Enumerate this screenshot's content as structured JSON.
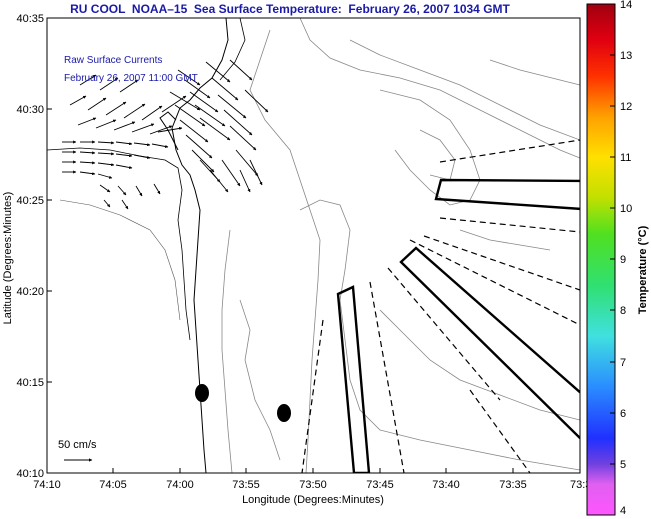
{
  "title": "RU COOL  NOAA–15  Sea Surface Temperature:  February 26, 2007 1034 GMT",
  "legend": {
    "line1": "Raw Surface Currents",
    "line2": "February 26, 2007 11:00 GMT",
    "scale_label": "50 cm/s"
  },
  "axes": {
    "xlabel": "Longitude (Degrees:Minutes)",
    "ylabel": "Latitude (Degrees:Minutes)",
    "x_ticks": [
      "74:10",
      "74:05",
      "74:00",
      "73:55",
      "73:50",
      "73:45",
      "73:40",
      "73:35",
      "73:3"
    ],
    "y_ticks": [
      "40:35",
      "40:30",
      "40:25",
      "40:20",
      "40:15",
      "40:10"
    ]
  },
  "colorbar": {
    "label": "Temperature (°C)",
    "ticks": [
      "14",
      "13",
      "12",
      "11",
      "10",
      "9",
      "8",
      "7",
      "6",
      "5",
      "4"
    ],
    "min": 4,
    "max": 14
  }
}
